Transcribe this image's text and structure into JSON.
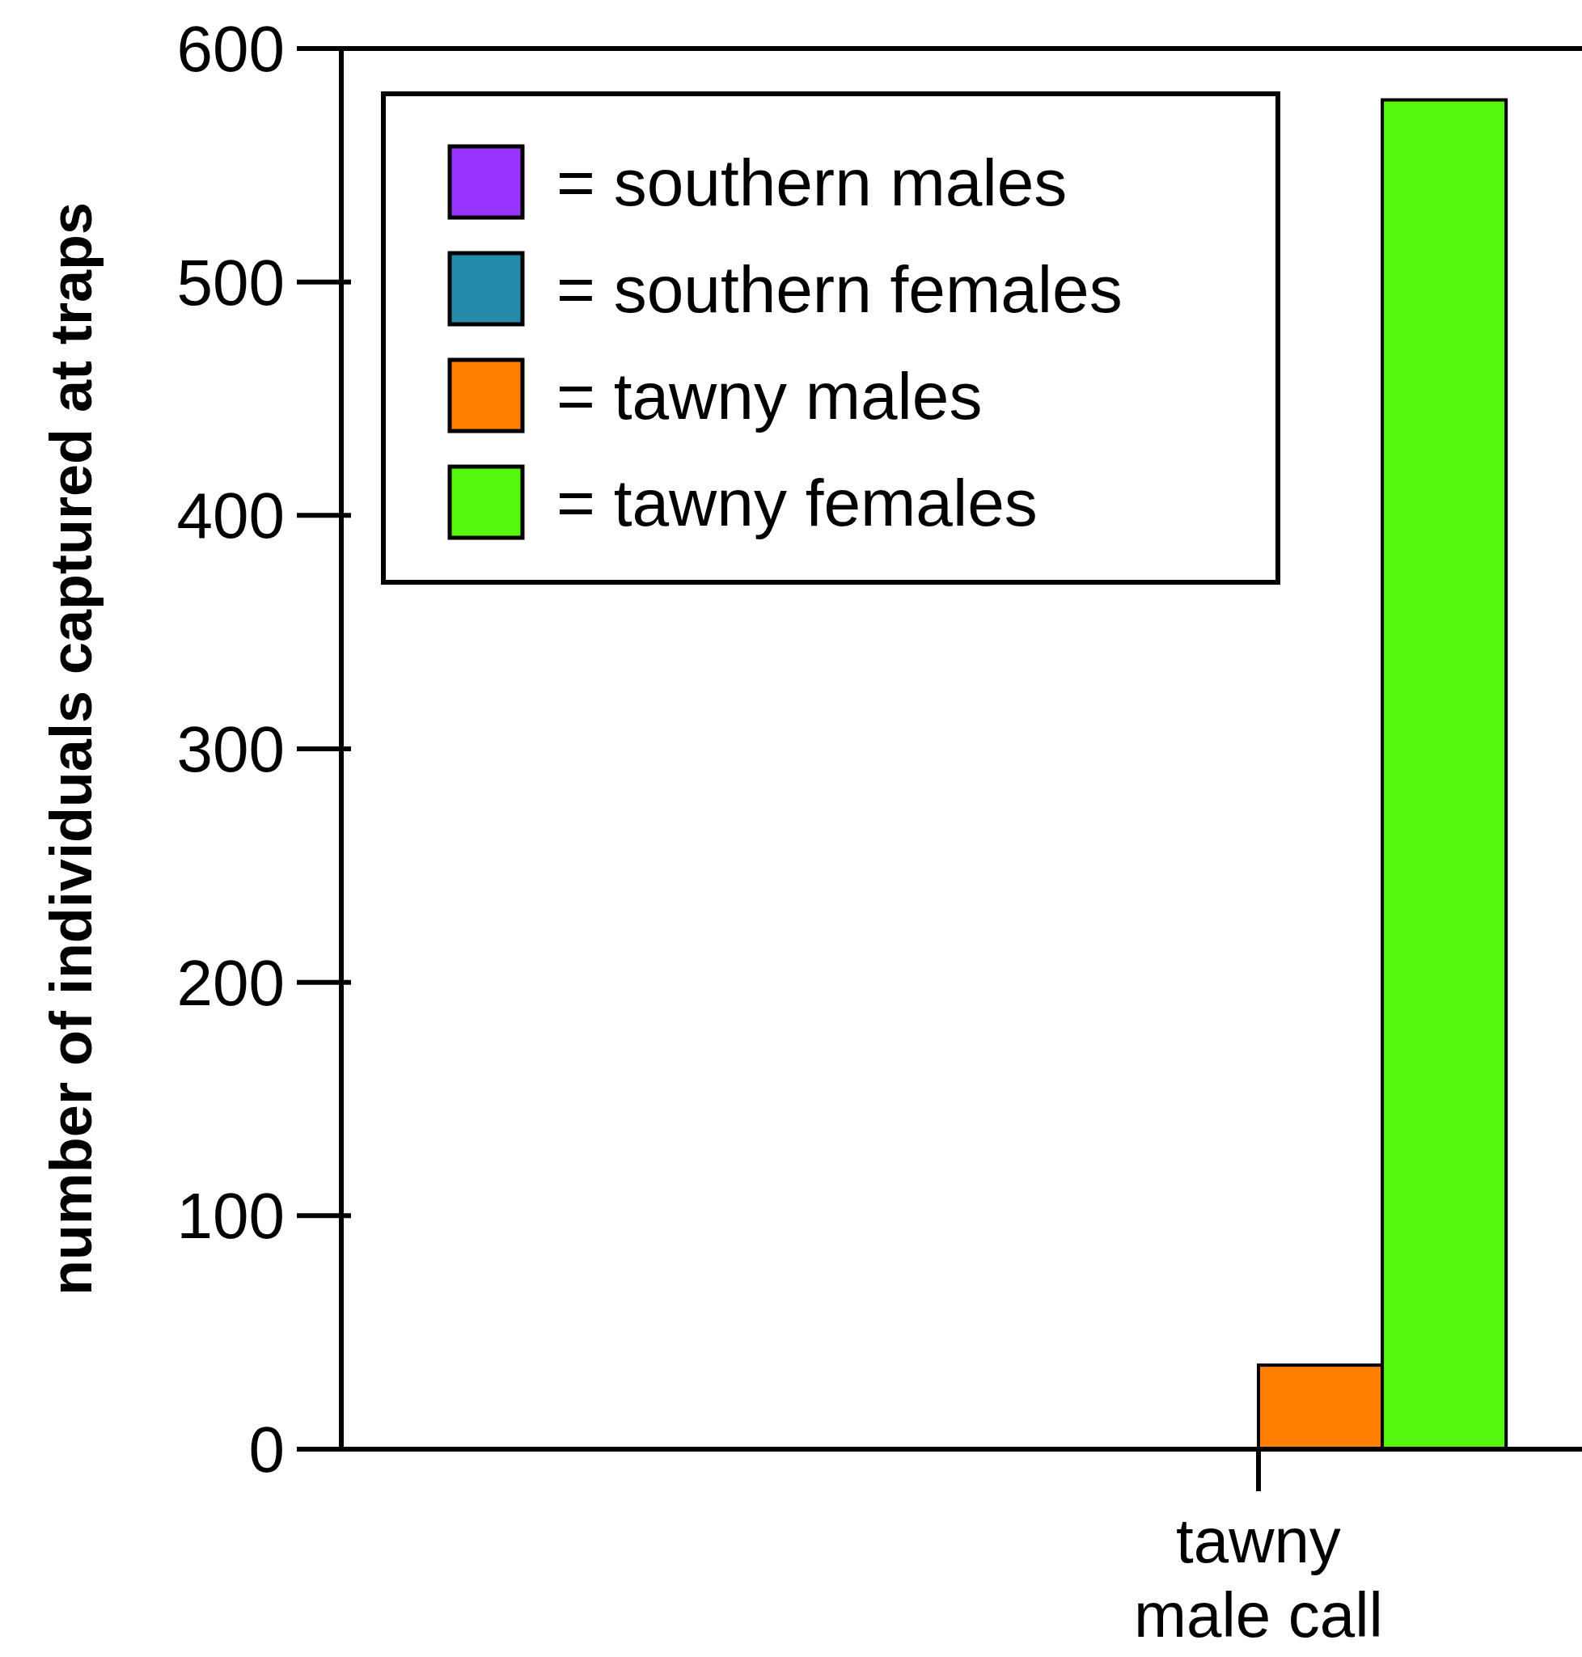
{
  "chart_data": {
    "type": "bar",
    "ylabel": "number of individuals captured at traps",
    "categories": [
      "tawny male call"
    ],
    "series": [
      {
        "name": "= southern males",
        "color": "#9933ff",
        "values": [
          0
        ]
      },
      {
        "name": "= southern females",
        "color": "#268aaa",
        "values": [
          0
        ]
      },
      {
        "name": "= tawny males",
        "color": "#ff8000",
        "values": [
          36
        ]
      },
      {
        "name": "= tawny females",
        "color": "#55f70f",
        "values": [
          578
        ]
      }
    ],
    "ylim": [
      0,
      600
    ],
    "yticks": [
      0,
      100,
      200,
      300,
      400,
      500,
      600
    ],
    "grid": false,
    "legend": "top left"
  }
}
